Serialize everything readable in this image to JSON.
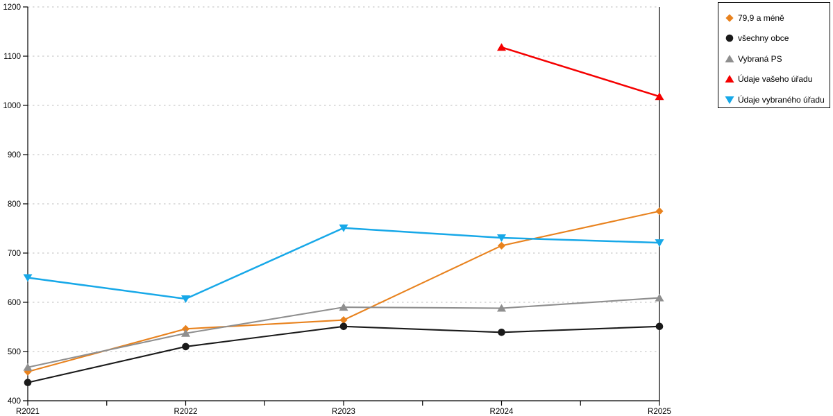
{
  "chart_data": {
    "type": "line",
    "title": "",
    "xlabel": "",
    "ylabel": "",
    "categories": [
      "R2021",
      "R2022",
      "R2023",
      "R2024",
      "R2025"
    ],
    "series": [
      {
        "name": "79,9 a méně",
        "color": "#E8821E",
        "marker": "diamond",
        "values": [
          459,
          546,
          564,
          715,
          785
        ]
      },
      {
        "name": "všechny obce",
        "color": "#1A1A1A",
        "marker": "circle",
        "values": [
          437,
          510,
          551,
          539,
          551
        ]
      },
      {
        "name": "Vybraná PS",
        "color": "#8F8F8F",
        "marker": "triangle-up",
        "values": [
          468,
          537,
          590,
          588,
          609
        ]
      },
      {
        "name": "Údaje vašeho úřadu",
        "color": "#F50000",
        "marker": "triangle-up",
        "values": [
          null,
          null,
          null,
          1118,
          1018
        ]
      },
      {
        "name": "Údaje vybraného úřadu",
        "color": "#17A8E8",
        "marker": "triangle-down",
        "values": [
          650,
          607,
          751,
          731,
          721
        ]
      }
    ],
    "ylim": [
      400,
      1200
    ],
    "ytick_step": 100,
    "y_tick_labels": [
      "400",
      "500",
      "600",
      "700",
      "800",
      "900",
      "1000",
      "1100",
      "1200"
    ],
    "x_minor_ticks": true,
    "grid": "horizontal-dotted",
    "grid_color": "#BEBEBE",
    "axis_color": "#000000",
    "legend_position": "top-right"
  }
}
